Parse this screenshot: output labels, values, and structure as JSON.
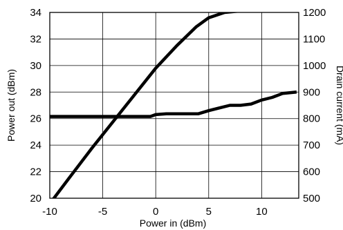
{
  "chart_data": {
    "type": "line",
    "title": "",
    "xlabel": "Power in (dBm)",
    "ylabel_left": "Power out (dBm)",
    "ylabel_right": "Drain current (mA)",
    "xlim": [
      -10,
      13.5
    ],
    "ylim_left": [
      20,
      34
    ],
    "ylim_right": [
      500,
      1200
    ],
    "grid": true,
    "x_ticks": [
      -10,
      -5,
      0,
      5,
      10
    ],
    "y_ticks_left": [
      20,
      22,
      24,
      26,
      28,
      30,
      32,
      34
    ],
    "y_ticks_right": [
      500,
      600,
      700,
      800,
      900,
      1000,
      1100,
      1200
    ],
    "x_tick_labels": [
      "-10",
      "-5",
      "0",
      "5",
      "10"
    ],
    "y_tick_labels_left": [
      "20",
      "22",
      "24",
      "26",
      "28",
      "30",
      "32",
      "34"
    ],
    "y_tick_labels_right": [
      "500",
      "600",
      "700",
      "800",
      "900",
      "1000",
      "1100",
      "1200"
    ],
    "series": [
      {
        "axis": "left",
        "color": "#000000",
        "x": [
          -9.8,
          -8,
          -6,
          -4,
          -2,
          0,
          2,
          3.8,
          5,
          6.5,
          8.5,
          10,
          11.5,
          13.3
        ],
        "y": [
          19.8,
          21.7,
          23.8,
          25.8,
          27.8,
          29.8,
          31.5,
          32.9,
          33.6,
          34.0,
          34.15,
          34.2,
          34.3,
          34.3
        ]
      },
      {
        "axis": "right",
        "color": "#000000",
        "x": [
          -10,
          -8,
          -6,
          -4,
          -2,
          -0.5,
          0,
          1,
          2,
          3,
          4,
          5,
          6,
          7,
          8,
          9,
          10,
          11,
          12,
          13.3
        ],
        "y": [
          808,
          808,
          808,
          808,
          808,
          808,
          815,
          818,
          818,
          818,
          818,
          830,
          840,
          850,
          850,
          855,
          870,
          880,
          895,
          900
        ]
      }
    ]
  }
}
